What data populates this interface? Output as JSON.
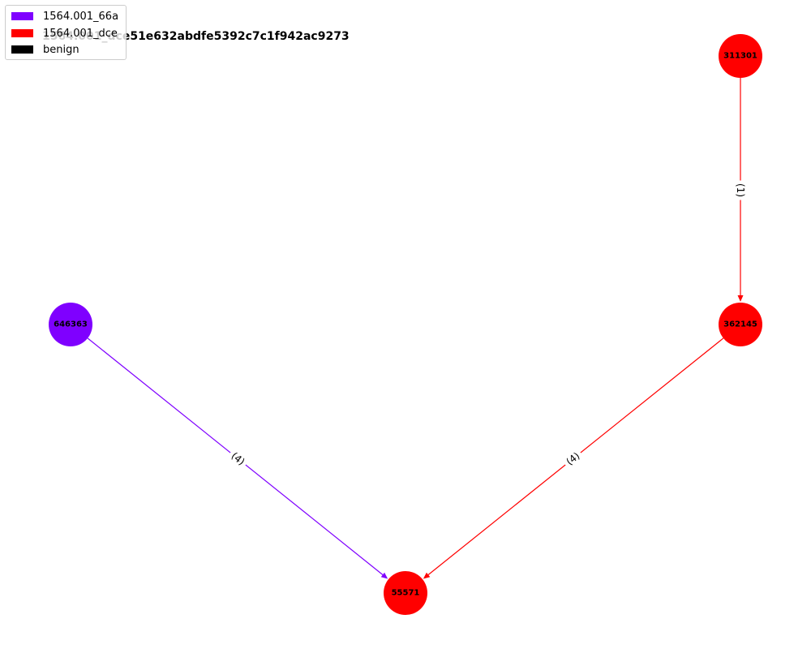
{
  "title": "1564.001_dce51e632abdfe5392c7c1f942ac9273",
  "legend": {
    "items": [
      {
        "label": "1564.001_66a",
        "color": "#7f00ff"
      },
      {
        "label": "1564.001_dce",
        "color": "#ff0000"
      },
      {
        "label": "benign",
        "color": "#000000"
      }
    ]
  },
  "nodes": [
    {
      "id": "311301",
      "label": "311301",
      "color": "#ff0000"
    },
    {
      "id": "362145",
      "label": "362145",
      "color": "#ff0000"
    },
    {
      "id": "646363",
      "label": "646363",
      "color": "#7f00ff"
    },
    {
      "id": "55571",
      "label": "55571",
      "color": "#ff0000"
    }
  ],
  "edges": [
    {
      "source": "311301",
      "target": "362145",
      "label": "(1)",
      "color": "#ff0000"
    },
    {
      "source": "362145",
      "target": "55571",
      "label": "(4)",
      "color": "#ff0000"
    },
    {
      "source": "646363",
      "target": "55571",
      "label": "(4)",
      "color": "#7f00ff"
    }
  ]
}
